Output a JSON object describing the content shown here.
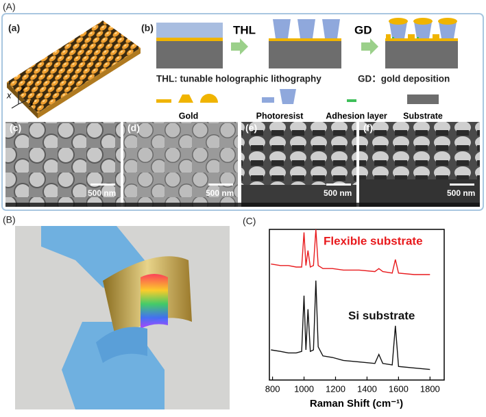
{
  "panels": {
    "A": {
      "label": "(A)",
      "a": "(a)",
      "b": "(b)",
      "step1": "THL",
      "step2": "GD",
      "caption1": "THL: tunable holographic lithography",
      "caption2": "GD：gold deposition",
      "legend": [
        "Gold",
        "Photoresist",
        "Adhesion layer",
        "Substrate"
      ],
      "axes": [
        "x",
        "y",
        "z"
      ],
      "sem": [
        {
          "label": "(c)",
          "scale": "500 nm"
        },
        {
          "label": "(d)",
          "scale": "500 nm"
        },
        {
          "label": "(e)",
          "scale": "500 nm"
        },
        {
          "label": "(f)",
          "scale": "500 nm"
        }
      ]
    },
    "B": {
      "label": "(B)"
    },
    "C": {
      "label": "(C)"
    }
  },
  "chart_data": {
    "type": "line",
    "xlabel": "Raman Shift (cm⁻¹)",
    "x": [
      790,
      850,
      900,
      950,
      985,
      1000,
      1012,
      1025,
      1040,
      1060,
      1075,
      1090,
      1120,
      1180,
      1250,
      1350,
      1450,
      1475,
      1500,
      1560,
      1580,
      1600,
      1700,
      1800
    ],
    "series": [
      {
        "name": "Flexible substrate",
        "color": "#e8191c",
        "values": [
          77,
          76,
          76,
          75,
          75,
          98,
          76,
          86,
          75,
          76,
          100,
          76,
          74,
          74,
          73,
          73,
          72,
          74,
          72,
          71,
          80,
          71,
          70,
          70
        ]
      },
      {
        "name": "Si substrate",
        "color": "#111111",
        "values": [
          20,
          19,
          18,
          18,
          19,
          56,
          20,
          47,
          19,
          20,
          66,
          22,
          16,
          15,
          13,
          12,
          11,
          17,
          11,
          10,
          36,
          9,
          8,
          7
        ]
      }
    ],
    "xlim": [
      780,
      1890
    ],
    "xticks": [
      800,
      1000,
      1200,
      1400,
      1600,
      1800
    ],
    "ylim": [
      0,
      100
    ]
  }
}
